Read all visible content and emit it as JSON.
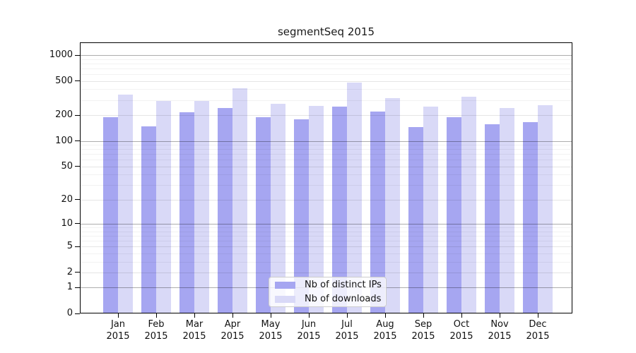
{
  "title": "segmentSeq 2015",
  "chart_data": {
    "type": "bar",
    "title": "segmentSeq 2015",
    "categories": [
      "Jan 2015",
      "Feb 2015",
      "Mar 2015",
      "Apr 2015",
      "May 2015",
      "Jun 2015",
      "Jul 2015",
      "Aug 2015",
      "Sep 2015",
      "Oct 2015",
      "Nov 2015",
      "Dec 2015"
    ],
    "series": [
      {
        "name": "Nb of distinct IPs",
        "color": "#a6a6f1",
        "values": [
          190,
          148,
          215,
          240,
          190,
          180,
          253,
          220,
          145,
          190,
          155,
          167
        ]
      },
      {
        "name": "Nb of downloads",
        "color": "#d9d9f7",
        "values": [
          350,
          295,
          295,
          413,
          272,
          258,
          480,
          318,
          249,
          330,
          244,
          263
        ]
      }
    ],
    "xlabel": "",
    "ylabel": "",
    "yscale": "log1p",
    "yticks": [
      1000,
      500,
      200,
      100,
      50,
      20,
      10,
      5,
      2,
      1,
      0
    ],
    "ylim": [
      0,
      1400
    ],
    "grid": true,
    "legend_position": "lower center inside"
  },
  "colors": {
    "grid_major": "rgba(0,0,0,0.32)",
    "grid_mid": "rgba(0,0,0,0.10)",
    "grid_minor": "rgba(0,0,0,0.05)",
    "spine": "#000000"
  }
}
